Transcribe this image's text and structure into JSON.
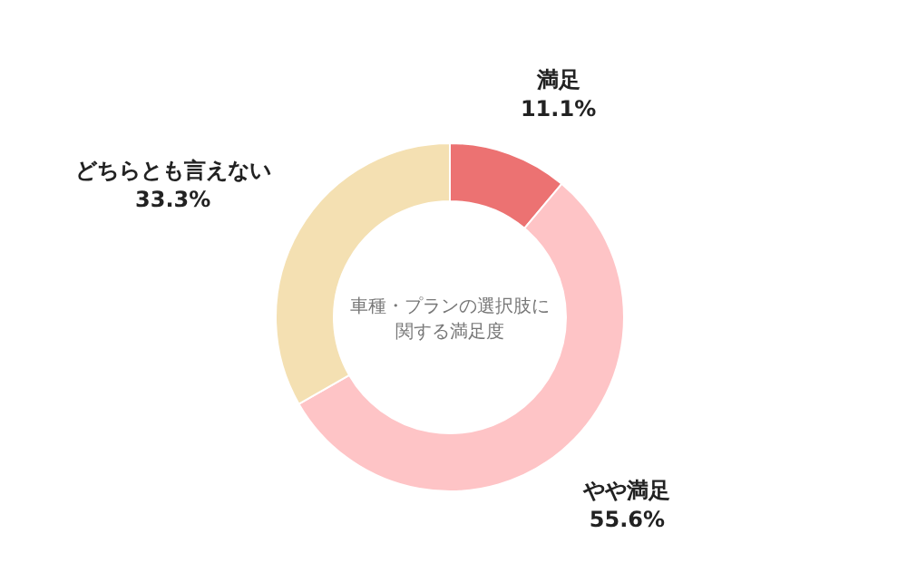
{
  "chart_data": {
    "type": "donut",
    "title": "車種・プランの選択肢に関する満足度",
    "categories": [
      "満足",
      "やや満足",
      "どちらとも言えない"
    ],
    "values": [
      11.1,
      55.6,
      33.3
    ],
    "value_labels": [
      "11.1%",
      "55.6%",
      "33.3%"
    ],
    "colors": [
      "#ec7272",
      "#fec4c6",
      "#f4e0b2"
    ]
  }
}
